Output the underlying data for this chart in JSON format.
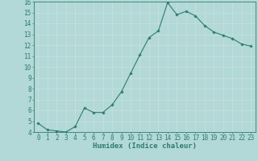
{
  "x_values": [
    0,
    1,
    2,
    3,
    4,
    5,
    6,
    7,
    8,
    9,
    10,
    11,
    12,
    13,
    14,
    15,
    16,
    17,
    18,
    19,
    20,
    21,
    22,
    23
  ],
  "y_values": [
    4.8,
    4.2,
    4.1,
    4.0,
    4.5,
    6.2,
    5.8,
    5.8,
    6.5,
    7.7,
    9.4,
    11.1,
    12.7,
    13.3,
    15.9,
    14.8,
    15.1,
    14.7,
    13.8,
    13.2,
    12.9,
    12.6,
    12.1,
    11.9
  ],
  "line_color": "#2e7d6e",
  "marker": "D",
  "marker_size": 1.8,
  "linewidth": 0.8,
  "xlabel": "Humidex (Indice chaleur)",
  "xlim": [
    -0.5,
    23.5
  ],
  "ylim": [
    4,
    16
  ],
  "yticks": [
    4,
    5,
    6,
    7,
    8,
    9,
    10,
    11,
    12,
    13,
    14,
    15,
    16
  ],
  "xticks": [
    0,
    1,
    2,
    3,
    4,
    5,
    6,
    7,
    8,
    9,
    10,
    11,
    12,
    13,
    14,
    15,
    16,
    17,
    18,
    19,
    20,
    21,
    22,
    23
  ],
  "bg_color": "#b2d8d8",
  "grid_color": "#c8e0d8",
  "axes_color": "#2e7d6e",
  "tick_label_color": "#2e7d6e",
  "xlabel_fontsize": 6.5,
  "tick_fontsize": 5.5
}
